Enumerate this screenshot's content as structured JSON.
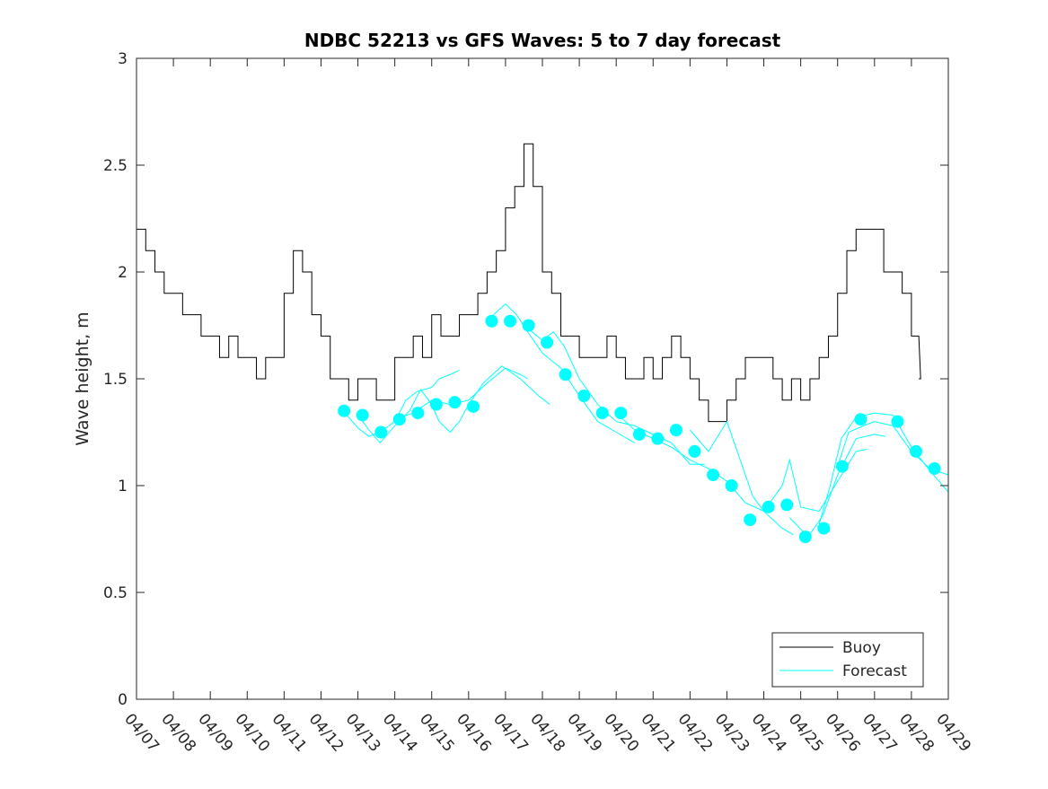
{
  "chart_data": {
    "type": "line",
    "title": "NDBC 52213 vs GFS Waves: 5 to 7 day forecast",
    "xlabel": "",
    "ylabel": "Wave height, m",
    "xlim": [
      7,
      29
    ],
    "ylim": [
      0,
      3
    ],
    "x_unit": "day of April",
    "x_ticks": [
      7,
      8,
      9,
      10,
      11,
      12,
      13,
      14,
      15,
      16,
      17,
      18,
      19,
      20,
      21,
      22,
      23,
      24,
      25,
      26,
      27,
      28,
      29
    ],
    "x_tick_labels": [
      "04/07",
      "04/08",
      "04/09",
      "04/10",
      "04/11",
      "04/12",
      "04/13",
      "04/14",
      "04/15",
      "04/16",
      "04/17",
      "04/18",
      "04/19",
      "04/20",
      "04/21",
      "04/22",
      "04/23",
      "04/24",
      "04/25",
      "04/26",
      "04/27",
      "04/28",
      "04/29"
    ],
    "y_ticks": [
      0,
      0.5,
      1,
      1.5,
      2,
      2.5,
      3
    ],
    "y_tick_labels": [
      "0",
      "0.5",
      "1",
      "1.5",
      "2",
      "2.5",
      "3"
    ],
    "grid": false,
    "legend": {
      "placement": "bottom-right",
      "entries": [
        "Buoy",
        "Forecast"
      ]
    },
    "colors": {
      "buoy": "#000000",
      "forecast": "#00ffff"
    },
    "buoy": {
      "x_start": 7,
      "x_step": 0.25,
      "values": [
        2.2,
        2.1,
        2.0,
        1.9,
        1.9,
        1.8,
        1.8,
        1.7,
        1.7,
        1.6,
        1.7,
        1.6,
        1.6,
        1.5,
        1.6,
        1.6,
        1.9,
        2.1,
        2.0,
        1.8,
        1.7,
        1.5,
        1.5,
        1.4,
        1.5,
        1.5,
        1.4,
        1.4,
        1.6,
        1.6,
        1.7,
        1.6,
        1.8,
        1.7,
        1.7,
        1.8,
        1.8,
        1.9,
        2.0,
        2.1,
        2.3,
        2.4,
        2.6,
        2.4,
        2.0,
        1.9,
        1.7,
        1.7,
        1.6,
        1.6,
        1.6,
        1.7,
        1.6,
        1.5,
        1.5,
        1.6,
        1.5,
        1.6,
        1.7,
        1.6,
        1.5,
        1.4,
        1.3,
        1.3,
        1.4,
        1.5,
        1.6,
        1.6,
        1.6,
        1.5,
        1.4,
        1.5,
        1.4,
        1.5,
        1.6,
        1.7,
        1.9,
        2.1,
        2.2,
        2.2,
        2.2,
        2.0,
        2.0,
        1.9,
        1.7,
        1.5
      ]
    },
    "forecast_points": {
      "x_start": 12.625,
      "x_step": 0.5,
      "values": [
        1.35,
        1.33,
        1.25,
        1.31,
        1.34,
        1.38,
        1.39,
        1.37,
        1.77,
        1.77,
        1.75,
        1.67,
        1.52,
        1.42,
        1.34,
        1.34,
        1.24,
        1.22,
        1.26,
        1.16,
        1.05,
        1.0,
        0.84,
        0.9,
        0.91,
        0.76,
        0.8,
        1.09,
        1.31,
        null,
        1.3,
        1.16,
        1.08
      ]
    },
    "forecast_lines": [
      [
        [
          12.6,
          1.35
        ],
        [
          13.0,
          1.27
        ],
        [
          13.3,
          1.23
        ],
        [
          13.6,
          1.25
        ],
        [
          14.0,
          1.3
        ],
        [
          14.3,
          1.4
        ],
        [
          14.6,
          1.44
        ],
        [
          15.0,
          1.46
        ],
        [
          15.2,
          1.5
        ],
        [
          15.5,
          1.52
        ],
        [
          15.75,
          1.54
        ]
      ],
      [
        [
          13.0,
          1.33
        ],
        [
          13.3,
          1.26
        ],
        [
          13.6,
          1.2
        ],
        [
          14.0,
          1.28
        ],
        [
          14.4,
          1.35
        ],
        [
          14.7,
          1.45
        ],
        [
          15.0,
          1.38
        ],
        [
          15.2,
          1.3
        ],
        [
          15.5,
          1.25
        ],
        [
          15.75,
          1.3
        ],
        [
          16.0,
          1.38
        ],
        [
          16.4,
          1.48
        ],
        [
          16.9,
          1.56
        ],
        [
          17.4,
          1.5
        ],
        [
          17.9,
          1.42
        ],
        [
          18.2,
          1.38
        ]
      ],
      [
        [
          14.0,
          1.31
        ],
        [
          14.5,
          1.34
        ],
        [
          15.0,
          1.4
        ],
        [
          15.5,
          1.38
        ],
        [
          16.0,
          1.4
        ],
        [
          16.5,
          1.48
        ],
        [
          17.0,
          1.55
        ],
        [
          17.4,
          1.52
        ],
        [
          17.6,
          1.5
        ]
      ],
      [
        [
          16.5,
          1.77
        ],
        [
          16.8,
          1.82
        ],
        [
          17.0,
          1.85
        ],
        [
          17.3,
          1.8
        ],
        [
          17.6,
          1.72
        ],
        [
          18.0,
          1.62
        ],
        [
          18.5,
          1.55
        ],
        [
          19.0,
          1.42
        ],
        [
          19.5,
          1.3
        ],
        [
          20.0,
          1.25
        ],
        [
          20.5,
          1.2
        ]
      ],
      [
        [
          17.5,
          1.75
        ],
        [
          18.0,
          1.68
        ],
        [
          18.3,
          1.72
        ],
        [
          18.6,
          1.65
        ],
        [
          19.0,
          1.5
        ],
        [
          19.5,
          1.38
        ],
        [
          20.0,
          1.3
        ],
        [
          20.5,
          1.28
        ],
        [
          21.0,
          1.24
        ],
        [
          21.5,
          1.2
        ],
        [
          22.0,
          1.1
        ],
        [
          22.4,
          1.1
        ]
      ],
      [
        [
          20.0,
          1.34
        ],
        [
          20.5,
          1.26
        ],
        [
          21.0,
          1.22
        ],
        [
          21.5,
          1.18
        ],
        [
          22.0,
          1.12
        ],
        [
          22.5,
          1.08
        ],
        [
          23.0,
          1.02
        ],
        [
          23.5,
          0.92
        ],
        [
          24.0,
          0.88
        ],
        [
          24.5,
          0.8
        ],
        [
          24.8,
          0.77
        ]
      ],
      [
        [
          22.0,
          1.26
        ],
        [
          22.5,
          1.16
        ],
        [
          23.0,
          1.3
        ],
        [
          23.3,
          1.15
        ],
        [
          23.7,
          0.95
        ],
        [
          24.0,
          0.88
        ],
        [
          24.5,
          1.0
        ],
        [
          24.7,
          1.12
        ],
        [
          25.0,
          0.9
        ],
        [
          25.5,
          0.88
        ],
        [
          26.0,
          1.02
        ],
        [
          26.5,
          1.16
        ],
        [
          26.8,
          1.17
        ]
      ],
      [
        [
          24.7,
          0.85
        ],
        [
          25.2,
          0.76
        ],
        [
          25.6,
          0.86
        ],
        [
          26.0,
          1.05
        ],
        [
          26.5,
          1.22
        ],
        [
          27.0,
          1.24
        ],
        [
          27.3,
          1.23
        ]
      ],
      [
        [
          25.5,
          0.82
        ],
        [
          25.8,
          1.0
        ],
        [
          26.1,
          1.22
        ],
        [
          26.5,
          1.32
        ],
        [
          27.0,
          1.34
        ],
        [
          27.5,
          1.33
        ],
        [
          28.0,
          1.18
        ],
        [
          28.5,
          1.07
        ],
        [
          29.0,
          0.97
        ]
      ],
      [
        [
          26.0,
          1.09
        ],
        [
          26.3,
          1.25
        ],
        [
          26.7,
          1.28
        ],
        [
          27.0,
          1.3
        ],
        [
          27.5,
          1.28
        ],
        [
          28.0,
          1.16
        ],
        [
          28.5,
          1.08
        ],
        [
          29.0,
          1.05
        ]
      ]
    ]
  }
}
